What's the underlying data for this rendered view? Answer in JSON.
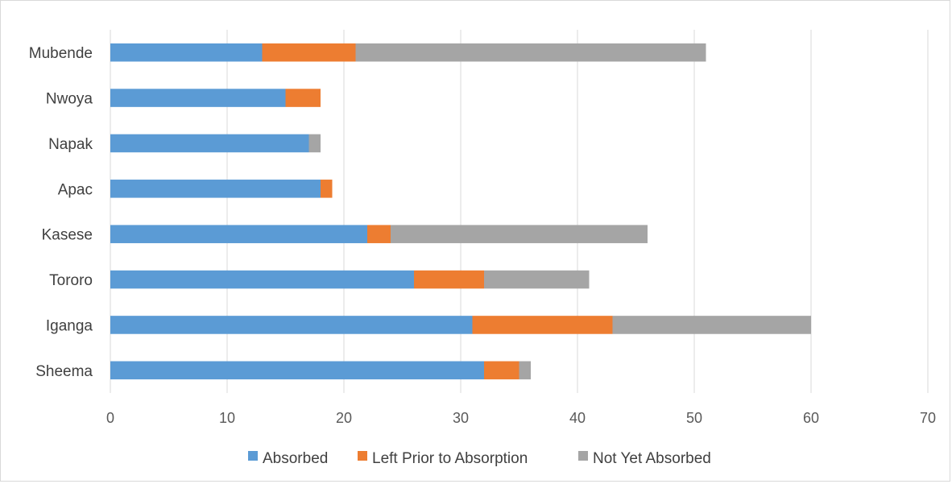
{
  "chart_data": {
    "type": "bar",
    "orientation": "horizontal",
    "stacked": true,
    "categories": [
      "Sheema",
      "Iganga",
      "Tororo",
      "Kasese",
      "Apac",
      "Napak",
      "Nwoya",
      "Mubende"
    ],
    "series": [
      {
        "name": "Absorbed",
        "color": "#5b9bd5",
        "values": [
          32,
          31,
          26,
          22,
          18,
          17,
          15,
          13
        ]
      },
      {
        "name": "Left Prior to Absorption",
        "color": "#ed7d31",
        "values": [
          3,
          12,
          6,
          2,
          1,
          0,
          3,
          8
        ]
      },
      {
        "name": "Not Yet Absorbed",
        "color": "#a5a5a5",
        "values": [
          1,
          17,
          9,
          22,
          0,
          1,
          0,
          30
        ]
      }
    ],
    "xlim": [
      0,
      70
    ],
    "xticks": [
      0,
      10,
      20,
      30,
      40,
      50,
      60,
      70
    ],
    "grid": true,
    "legend": "bottom",
    "title": "",
    "xlabel": "",
    "ylabel": ""
  }
}
